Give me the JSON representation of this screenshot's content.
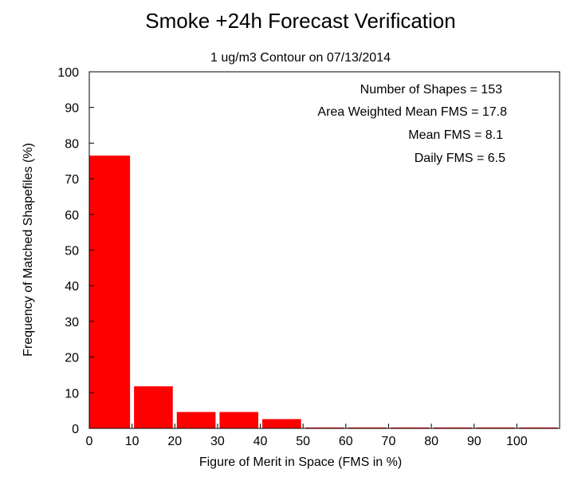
{
  "chart_data": {
    "type": "bar",
    "title": "Smoke +24h Forecast Verification",
    "subtitle": "1 ug/m3 Contour on 07/13/2014",
    "xlabel": "Figure of Merit in Space (FMS in %)",
    "ylabel": "Frequency of Matched Shapefiles (%)",
    "xlim": [
      0,
      110
    ],
    "ylim": [
      0,
      100
    ],
    "xticks": [
      0,
      10,
      20,
      30,
      40,
      50,
      60,
      70,
      80,
      90,
      100
    ],
    "yticks": [
      0,
      10,
      20,
      30,
      40,
      50,
      60,
      70,
      80,
      90,
      100
    ],
    "bin_width": 10,
    "bins": [
      {
        "start": 0,
        "value": 76.5
      },
      {
        "start": 10,
        "value": 11.8
      },
      {
        "start": 20,
        "value": 4.6
      },
      {
        "start": 30,
        "value": 4.6
      },
      {
        "start": 40,
        "value": 2.6
      },
      {
        "start": 50,
        "value": 0
      },
      {
        "start": 60,
        "value": 0
      },
      {
        "start": 70,
        "value": 0
      },
      {
        "start": 80,
        "value": 0
      },
      {
        "start": 90,
        "value": 0
      },
      {
        "start": 100,
        "value": 0
      }
    ],
    "bar_color": "#ff0000",
    "grid": false,
    "stats": [
      "Number of Shapes = 153",
      "Area Weighted Mean FMS = 17.8",
      "Mean FMS = 8.1",
      "Daily FMS = 6.5"
    ]
  }
}
